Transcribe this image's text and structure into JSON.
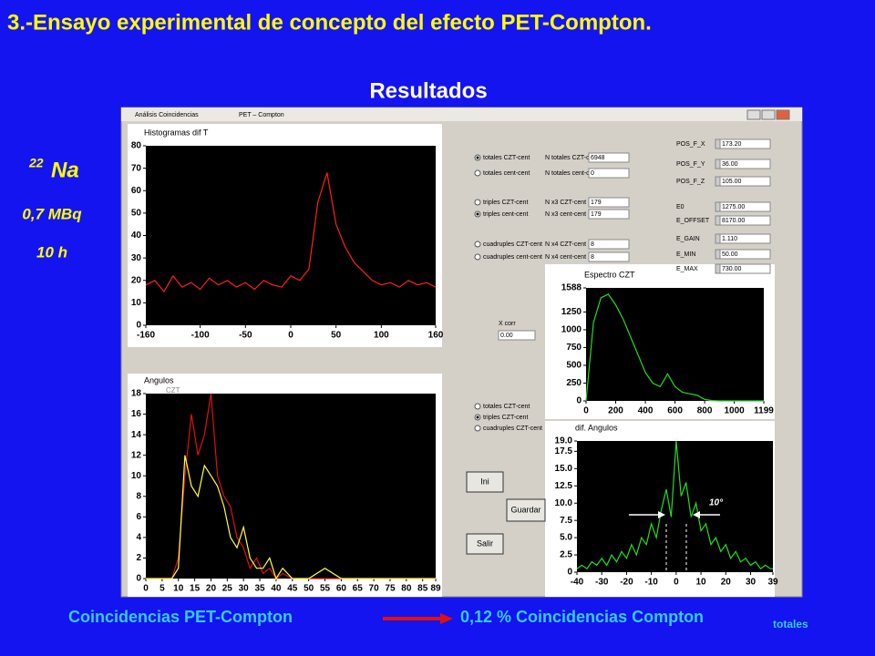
{
  "slide": {
    "title": "3.-Ensayo experimental de concepto del efecto PET-Compton.",
    "subtitle": "Resultados",
    "isotope": {
      "mass": "22",
      "symbol": "Na"
    },
    "activity": "0,7 MBq",
    "duration": "10 h",
    "caption": {
      "left": "Coincidencias PET-Compton",
      "right": "0,12 % Coincidencias Compton",
      "right_sub": "totales"
    }
  },
  "window": {
    "title": "Análisis Coincidencias",
    "tab": "PET – Compton",
    "modes": [
      {
        "label": "totales CZT-cent",
        "checked": true,
        "count_label": "N totales CZT-cent",
        "count": "6948"
      },
      {
        "label": "totales cent-cent",
        "checked": false,
        "count_label": "N totales cent-cent",
        "count": "0"
      },
      {
        "label": "triples CZT-cent",
        "checked": false,
        "count_label": "N x3 CZT-cent",
        "count": "179"
      },
      {
        "label": "triples cent-cent",
        "checked": true,
        "count_label": "N x3 cent-cent",
        "count": "179"
      },
      {
        "label": "cuadruples CZT-cent",
        "checked": false,
        "count_label": "N x4 CZT-cent",
        "count": "8"
      },
      {
        "label": "cuadruples cent-cent",
        "checked": false,
        "count_label": "N x4 cent-cent",
        "count": "8"
      }
    ],
    "x_corr": {
      "label": "X corr",
      "value": "0.00"
    },
    "params": [
      {
        "label": "POS_F_X",
        "value": "173.20"
      },
      {
        "label": "POS_F_Y",
        "value": "36.00"
      },
      {
        "label": "POS_F_Z",
        "value": "105.00"
      },
      {
        "label": "E0",
        "value": "1275.00"
      },
      {
        "label": "E_OFFSET",
        "value": "8170.00"
      },
      {
        "label": "E_GAIN",
        "value": "1.110"
      },
      {
        "label": "E_MIN",
        "value": "50.00"
      },
      {
        "label": "E_MAX",
        "value": "730.00"
      }
    ],
    "angle_modes": [
      {
        "label": "totales CZT-cent",
        "checked": false
      },
      {
        "label": "triples CZT-cent",
        "checked": true
      },
      {
        "label": "cuadruples CZT-cent",
        "checked": false
      }
    ],
    "buttons": [
      "Ini",
      "Guardar",
      "Salir"
    ]
  },
  "chart_data": [
    {
      "type": "line",
      "title": "Histogramas dif T",
      "x": [
        -160,
        -150,
        -140,
        -130,
        -120,
        -110,
        -100,
        -90,
        -80,
        -70,
        -60,
        -50,
        -40,
        -30,
        -20,
        -10,
        0,
        10,
        20,
        30,
        40,
        50,
        60,
        70,
        80,
        90,
        100,
        110,
        120,
        130,
        140,
        150,
        160
      ],
      "series": [
        {
          "color": "#ff2020",
          "values": [
            18,
            20,
            15,
            22,
            17,
            19,
            16,
            21,
            18,
            20,
            17,
            19,
            16,
            20,
            18,
            17,
            22,
            20,
            25,
            55,
            68,
            45,
            35,
            28,
            24,
            20,
            18,
            19,
            17,
            20,
            18,
            19,
            17
          ]
        }
      ],
      "xlim": [
        -160,
        160
      ],
      "ylim": [
        0,
        80
      ],
      "xticks": [
        -160,
        -100,
        -50,
        0,
        50,
        100,
        160
      ],
      "yticks": [
        0,
        10,
        20,
        30,
        40,
        50,
        60,
        70,
        80
      ]
    },
    {
      "type": "line",
      "title": "Angulos",
      "x": [
        0,
        5,
        8,
        10,
        12,
        14,
        16,
        18,
        20,
        22,
        24,
        26,
        28,
        30,
        32,
        34,
        36,
        38,
        40,
        42,
        45,
        50,
        55,
        60,
        65,
        70,
        89
      ],
      "series": [
        {
          "name": "CZT",
          "color": "#e01010",
          "values": [
            0,
            0,
            0,
            2,
            10,
            16,
            12,
            14,
            18,
            10,
            8,
            7,
            4,
            3,
            1,
            2,
            0.5,
            1,
            0,
            0.5,
            0,
            0,
            0,
            0,
            0,
            0,
            0
          ]
        },
        {
          "color": "#ffff40",
          "values": [
            0,
            0,
            0,
            1,
            12,
            9,
            8,
            11,
            10,
            9,
            7,
            4,
            3,
            5,
            2,
            1,
            1,
            2,
            0,
            1,
            0,
            0,
            1,
            0,
            0,
            0,
            0
          ]
        }
      ],
      "xlim": [
        0,
        89
      ],
      "ylim": [
        0,
        18
      ],
      "xticks": [
        0,
        5,
        10,
        15,
        20,
        25,
        30,
        35,
        40,
        45,
        50,
        55,
        60,
        65,
        70,
        75,
        80,
        85,
        89
      ],
      "yticks": [
        0,
        2,
        4,
        6,
        8,
        10,
        12,
        14,
        16,
        18
      ]
    },
    {
      "type": "line",
      "title": "Espectro CZT",
      "x": [
        0,
        50,
        100,
        150,
        200,
        250,
        300,
        350,
        400,
        450,
        500,
        550,
        600,
        650,
        700,
        750,
        800,
        850,
        900,
        950,
        1000,
        1050,
        1100,
        1150,
        1199
      ],
      "series": [
        {
          "color": "#20e020",
          "values": [
            0,
            1100,
            1450,
            1500,
            1350,
            1150,
            900,
            650,
            400,
            250,
            200,
            380,
            200,
            120,
            100,
            80,
            20,
            5,
            0,
            0,
            0,
            0,
            0,
            0,
            0
          ]
        }
      ],
      "xlim": [
        0,
        1199
      ],
      "ylim": [
        0,
        1588
      ],
      "xticks": [
        0,
        200,
        400,
        600,
        800,
        1000,
        1199
      ],
      "yticks": [
        0,
        250,
        500,
        750,
        1000,
        1250,
        1588
      ]
    },
    {
      "type": "line",
      "title": "dif. Angulos",
      "annotation": "10°",
      "x": [
        -40,
        -38,
        -36,
        -34,
        -32,
        -30,
        -28,
        -26,
        -24,
        -22,
        -20,
        -18,
        -16,
        -14,
        -12,
        -10,
        -8,
        -6,
        -4,
        -2,
        0,
        2,
        4,
        6,
        8,
        10,
        12,
        14,
        16,
        18,
        20,
        22,
        24,
        26,
        28,
        30,
        32,
        34,
        36,
        38,
        39
      ],
      "series": [
        {
          "color": "#20e020",
          "values": [
            0.5,
            1,
            0.5,
            1.5,
            1,
            2,
            1,
            2.5,
            1.5,
            3,
            2,
            4,
            2.5,
            5,
            4,
            7,
            5,
            9,
            12,
            8,
            19,
            11,
            13,
            8,
            10,
            6,
            7,
            4,
            5,
            3,
            4,
            2,
            3,
            1.5,
            2,
            1,
            1.5,
            0.5,
            1,
            0.5,
            0.5
          ]
        }
      ],
      "xlim": [
        -40,
        39
      ],
      "ylim": [
        0,
        19
      ],
      "xticks": [
        -40,
        -30,
        -20,
        -10,
        0,
        10,
        20,
        30,
        39
      ],
      "yticks": [
        0,
        2.5,
        {
          "value": 5,
          "label": "5.0"
        },
        7.5,
        {
          "value": 10,
          "label": "10.0"
        },
        12.5,
        {
          "value": 15,
          "label": "15.0"
        },
        17.5,
        {
          "value": 19,
          "label": "19.0"
        }
      ]
    }
  ]
}
